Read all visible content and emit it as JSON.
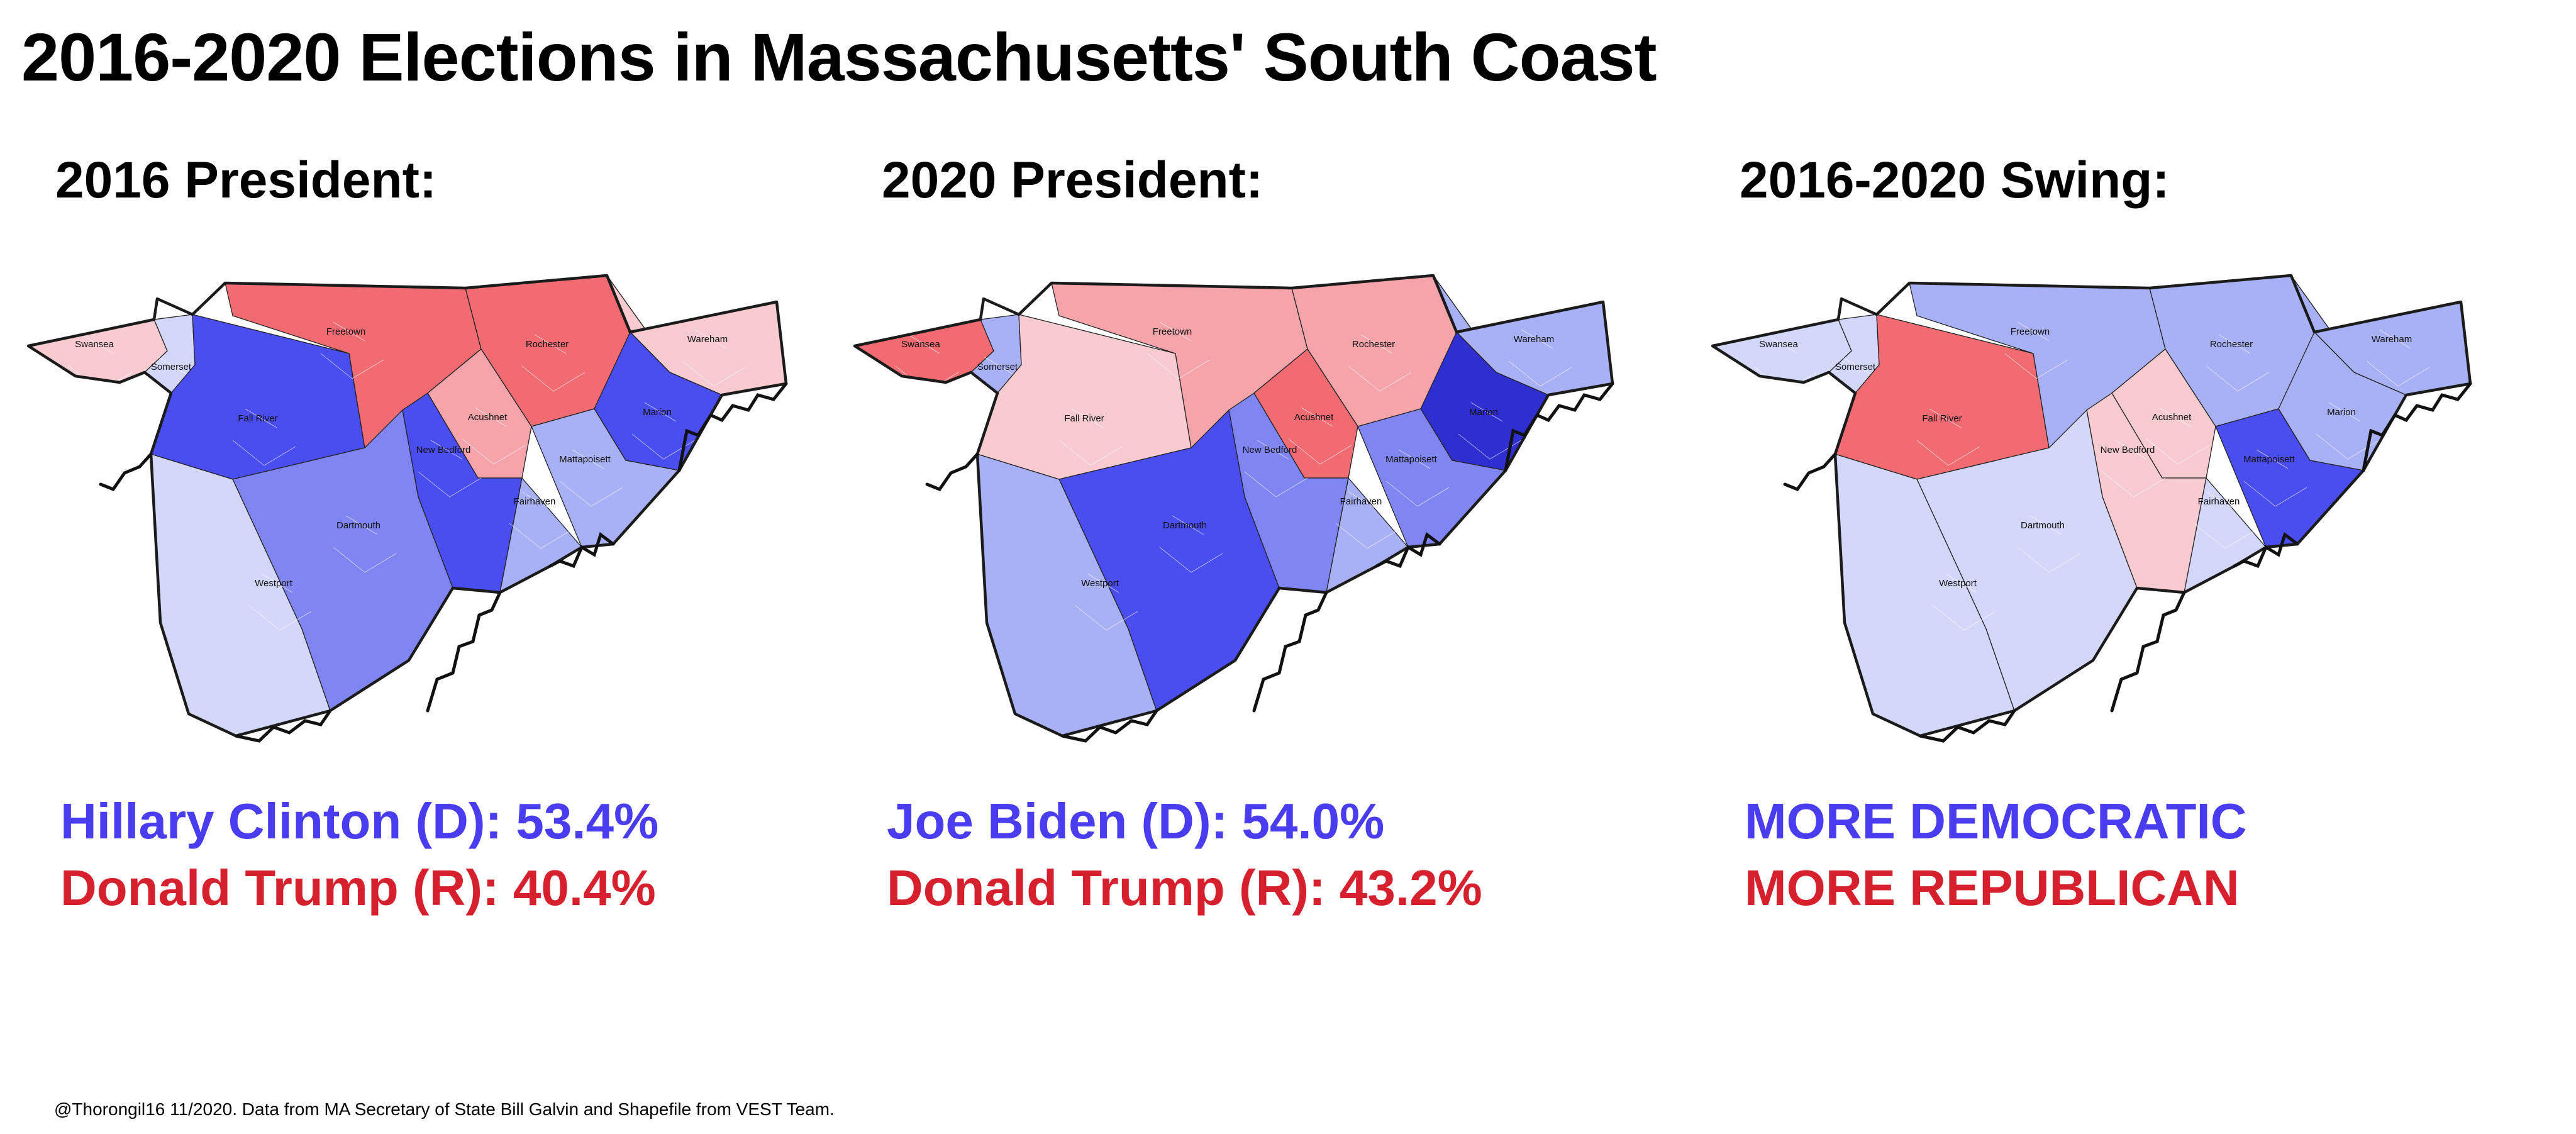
{
  "title": "2016-2020 Elections in Massachusetts' South Coast",
  "colors": {
    "dem_text": "#4a3cf0",
    "rep_text": "#d6202e",
    "scale": {
      "d4": "#2f2ed0",
      "d3": "#4a4df0",
      "d2": "#7f86f4",
      "d1": "#a9b1f6",
      "d0": "#d3d8fb",
      "r0": "#f7cbd0",
      "r1": "#f5a4aa",
      "r2": "#f06c72",
      "r3": "#e04048"
    }
  },
  "panels": [
    {
      "heading": "2016 President:",
      "legend": [
        {
          "text": "Hillary Clinton (D): 53.4%",
          "party": "dem"
        },
        {
          "text": "Donald Trump (R): 40.4%",
          "party": "rep"
        }
      ],
      "towns": [
        {
          "name": "Swansea",
          "shade": "r0"
        },
        {
          "name": "Somerset",
          "shade": "d0"
        },
        {
          "name": "Fall River",
          "shade": "d3"
        },
        {
          "name": "Freetown",
          "shade": "r2"
        },
        {
          "name": "Rochester",
          "shade": "r2"
        },
        {
          "name": "Acushnet",
          "shade": "r1"
        },
        {
          "name": "New Bedford",
          "shade": "d3"
        },
        {
          "name": "Wareham",
          "shade": "r0"
        },
        {
          "name": "Marion",
          "shade": "d3"
        },
        {
          "name": "Mattapoisett",
          "shade": "d1"
        },
        {
          "name": "Fairhaven",
          "shade": "d1"
        },
        {
          "name": "Dartmouth",
          "shade": "d2"
        },
        {
          "name": "Westport",
          "shade": "d0"
        }
      ]
    },
    {
      "heading": "2020 President:",
      "legend": [
        {
          "text": "Joe Biden (D): 54.0%",
          "party": "dem"
        },
        {
          "text": "Donald Trump (R): 43.2%",
          "party": "rep"
        }
      ],
      "towns": [
        {
          "name": "Swansea",
          "shade": "r2"
        },
        {
          "name": "Somerset",
          "shade": "d1"
        },
        {
          "name": "Fall River",
          "shade": "r0"
        },
        {
          "name": "Freetown",
          "shade": "r1"
        },
        {
          "name": "Rochester",
          "shade": "r1"
        },
        {
          "name": "Acushnet",
          "shade": "r2"
        },
        {
          "name": "New Bedford",
          "shade": "d2"
        },
        {
          "name": "Wareham",
          "shade": "d1"
        },
        {
          "name": "Marion",
          "shade": "d4"
        },
        {
          "name": "Mattapoisett",
          "shade": "d2"
        },
        {
          "name": "Fairhaven",
          "shade": "d1"
        },
        {
          "name": "Dartmouth",
          "shade": "d3"
        },
        {
          "name": "Westport",
          "shade": "d1"
        }
      ]
    },
    {
      "heading": "2016-2020 Swing:",
      "legend": [
        {
          "text": "MORE DEMOCRATIC",
          "party": "dem"
        },
        {
          "text": "MORE REPUBLICAN",
          "party": "rep"
        }
      ],
      "towns": [
        {
          "name": "Swansea",
          "shade": "d0"
        },
        {
          "name": "Somerset",
          "shade": "d0"
        },
        {
          "name": "Fall River",
          "shade": "r2"
        },
        {
          "name": "Freetown",
          "shade": "d1"
        },
        {
          "name": "Rochester",
          "shade": "d1"
        },
        {
          "name": "Acushnet",
          "shade": "r0"
        },
        {
          "name": "New Bedford",
          "shade": "r0"
        },
        {
          "name": "Wareham",
          "shade": "d1"
        },
        {
          "name": "Marion",
          "shade": "d1"
        },
        {
          "name": "Mattapoisett",
          "shade": "d3"
        },
        {
          "name": "Fairhaven",
          "shade": "d0"
        },
        {
          "name": "Dartmouth",
          "shade": "d0"
        },
        {
          "name": "Westport",
          "shade": "d0"
        }
      ]
    }
  ],
  "footer": "@Thorongil16 11/2020. Data from MA Secretary of State Bill Galvin and Shapefile from VEST Team."
}
